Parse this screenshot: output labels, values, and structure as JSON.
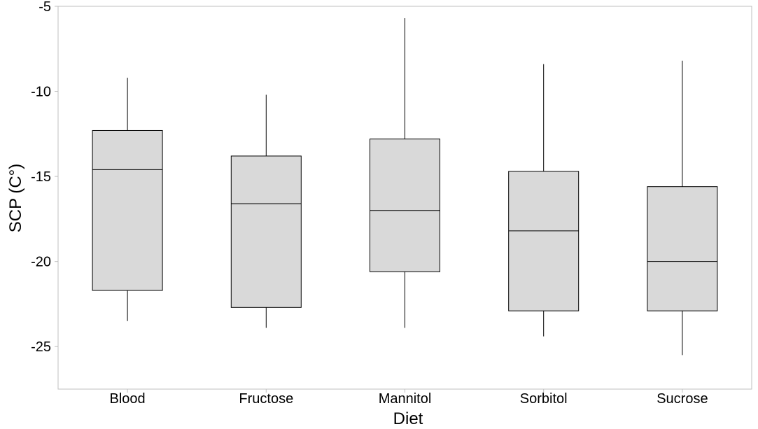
{
  "chart_data": {
    "type": "box",
    "xlabel": "Diet",
    "ylabel": "SCP (C°)",
    "ylim": [
      -27.5,
      -5
    ],
    "yticks": [
      -5,
      -10,
      -15,
      -20,
      -25
    ],
    "grid": false,
    "categories": [
      "Blood",
      "Fructose",
      "Mannitol",
      "Sorbitol",
      "Sucrose"
    ],
    "boxes": [
      {
        "category": "Blood",
        "whisker_high": -9.2,
        "q3": -12.3,
        "median": -14.6,
        "q1": -21.7,
        "whisker_low": -23.5
      },
      {
        "category": "Fructose",
        "whisker_high": -10.2,
        "q3": -13.8,
        "median": -16.6,
        "q1": -22.7,
        "whisker_low": -23.9
      },
      {
        "category": "Mannitol",
        "whisker_high": -5.7,
        "q3": -12.8,
        "median": -17.0,
        "q1": -20.6,
        "whisker_low": -23.9
      },
      {
        "category": "Sorbitol",
        "whisker_high": -8.4,
        "q3": -14.7,
        "median": -18.2,
        "q1": -22.9,
        "whisker_low": -24.4
      },
      {
        "category": "Sucrose",
        "whisker_high": -8.2,
        "q3": -15.6,
        "median": -20.0,
        "q1": -22.9,
        "whisker_low": -25.5
      }
    ],
    "colors": {
      "box_fill": "#d9d9d9",
      "stroke": "#000000",
      "axis_frame": "#bfbfbf"
    }
  }
}
